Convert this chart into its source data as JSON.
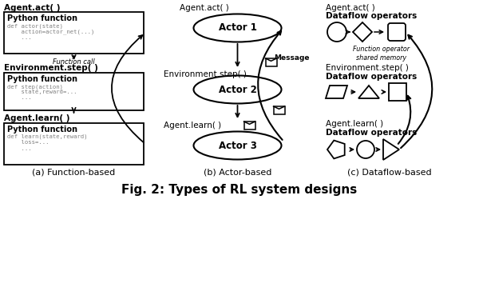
{
  "title": "Fig. 2: Types of RL system designs",
  "title_fontsize": 11,
  "bg_color": "#ffffff",
  "panel_a": {
    "label": "(a) Function-based",
    "header1": "Agent.act( )",
    "box1_title": "Python function",
    "box1_code": "def actor(state)\n    action=actor_net(...)\n    ...",
    "func_call_text": "Function call",
    "header2": "Environment.step( )",
    "box2_title": "Python function",
    "box2_code": "def step(action)\n    state,reward=...\n    ...",
    "header3": "Agent.learn( )",
    "box3_title": "Python function",
    "box3_code": "def learn(state,reward)\n    loss=...\n    ..."
  },
  "panel_b": {
    "label": "(b) Actor-based",
    "header1": "Agent.act( )",
    "actor1": "Actor 1",
    "header2": "Environment.step( )",
    "actor2": "Actor 2",
    "header3": "Agent.learn( )",
    "actor3": "Actor 3",
    "msg_label": "Message"
  },
  "panel_c": {
    "label": "(c) Dataflow-based",
    "header1": "Agent.act( )",
    "subheader1": "Dataflow operators",
    "italic_text": "Function operator\nshared memory",
    "header2": "Environment.step( )",
    "subheader2": "Dataflow operators",
    "header3": "Agent.learn( )",
    "subheader3": "Dataflow operators"
  }
}
